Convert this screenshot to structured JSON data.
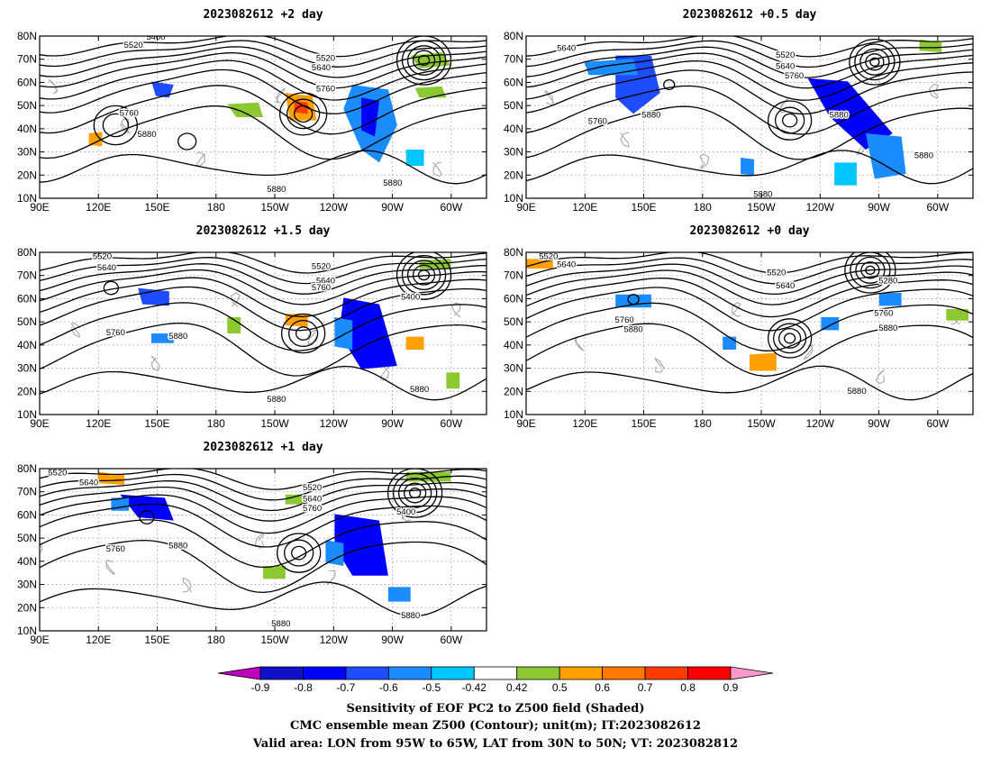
{
  "panels": [
    {
      "title": "2023082612 +2 day"
    },
    {
      "title": "2023082612 +0.5 day"
    },
    {
      "title": "2023082612 +1.5 day"
    },
    {
      "title": "2023082612 +0 day"
    },
    {
      "title": "2023082612 +1 day"
    }
  ],
  "axes": {
    "lat_ticks": [
      "10N",
      "20N",
      "30N",
      "40N",
      "50N",
      "60N",
      "70N",
      "80N"
    ],
    "lon_ticks": [
      "90E",
      "120E",
      "150E",
      "180",
      "150W",
      "120W",
      "90W",
      "60W"
    ]
  },
  "contour_labels": {
    "panel_0": [
      "5520",
      "5400",
      "5640",
      "5760",
      "5520",
      "5760",
      "5880",
      "5880",
      "5880"
    ],
    "panel_1": [
      "5640",
      "5520",
      "5640",
      "5760",
      "5880",
      "5880",
      "5760",
      "5880",
      "5880"
    ],
    "panel_2": [
      "5520",
      "5640",
      "5520",
      "5640",
      "5760",
      "5400",
      "5760",
      "5880",
      "5880",
      "5880"
    ],
    "panel_3": [
      "5520",
      "5640",
      "5520",
      "5640",
      "5280",
      "5760",
      "5880",
      "5760",
      "5880",
      "5880"
    ],
    "panel_4": [
      "5520",
      "5640",
      "5520",
      "5640",
      "5760",
      "5400",
      "5760",
      "5880",
      "5880",
      "5880"
    ]
  },
  "colorbar": {
    "labels": [
      "-0.9",
      "-0.8",
      "-0.7",
      "-0.6",
      "-0.5",
      "-0.42",
      "0.42",
      "0.5",
      "0.6",
      "0.7",
      "0.8",
      "0.9"
    ],
    "colors": [
      "#c000c0",
      "#1010c8",
      "#0000ff",
      "#1e4cff",
      "#1a8cff",
      "#00c8ff",
      "#ffffff",
      "#8cc832",
      "#ffa000",
      "#ff7800",
      "#ff3c00",
      "#ff0000",
      "#ff99cc"
    ]
  },
  "footer": {
    "line1": "Sensitivity of EOF PC2 to Z500 field (Shaded)",
    "line2": "CMC ensemble mean Z500 (Contour); unit(m); IT:2023082612",
    "line3": "Valid area: LON from 95W to 65W, LAT from 30N to 50N; VT: 2023082812"
  }
}
